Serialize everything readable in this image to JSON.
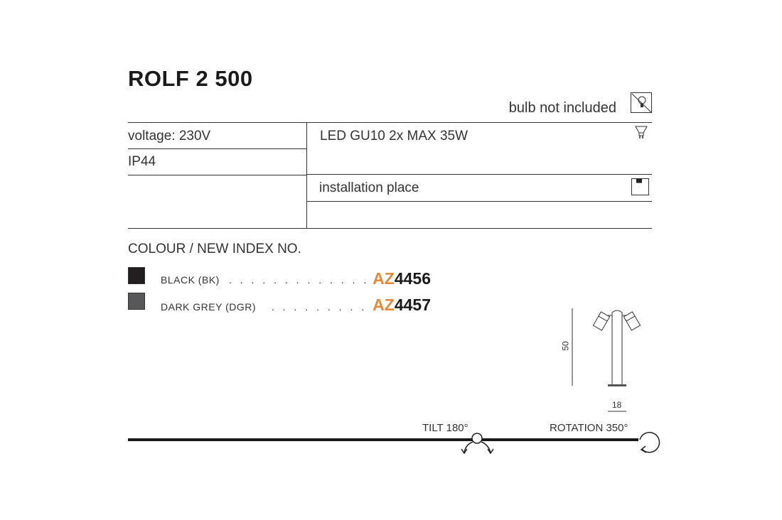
{
  "product": {
    "title": "ROLF 2 500"
  },
  "notes": {
    "bulb": "bulb not included",
    "bulb_icon": "no-bulb-icon"
  },
  "specs": {
    "voltage": "voltage: 230V",
    "ip": "IP44",
    "light_source": "LED GU10 2x MAX 35W",
    "light_source_icon": "gu10-bulb-icon",
    "installation": "installation place",
    "installation_icon": "ceiling-mount-icon"
  },
  "colours": {
    "heading": "COLOUR / NEW INDEX NO.",
    "items": [
      {
        "name": "BLACK (BK)",
        "dots": ". . . . . . . . . . . . .",
        "code_prefix": "AZ",
        "code_number": "4456",
        "swatch": "#231f20"
      },
      {
        "name": "DARK GREY (DGR)",
        "dots": ". . . . . . . . . .",
        "code_prefix": "AZ",
        "code_number": "4457",
        "swatch": "#58585a"
      }
    ],
    "accent": "#e8893a"
  },
  "dimensions": {
    "height": "50",
    "width": "18"
  },
  "features": {
    "tilt": "TILT 180°",
    "rotation": "ROTATION 350°"
  }
}
